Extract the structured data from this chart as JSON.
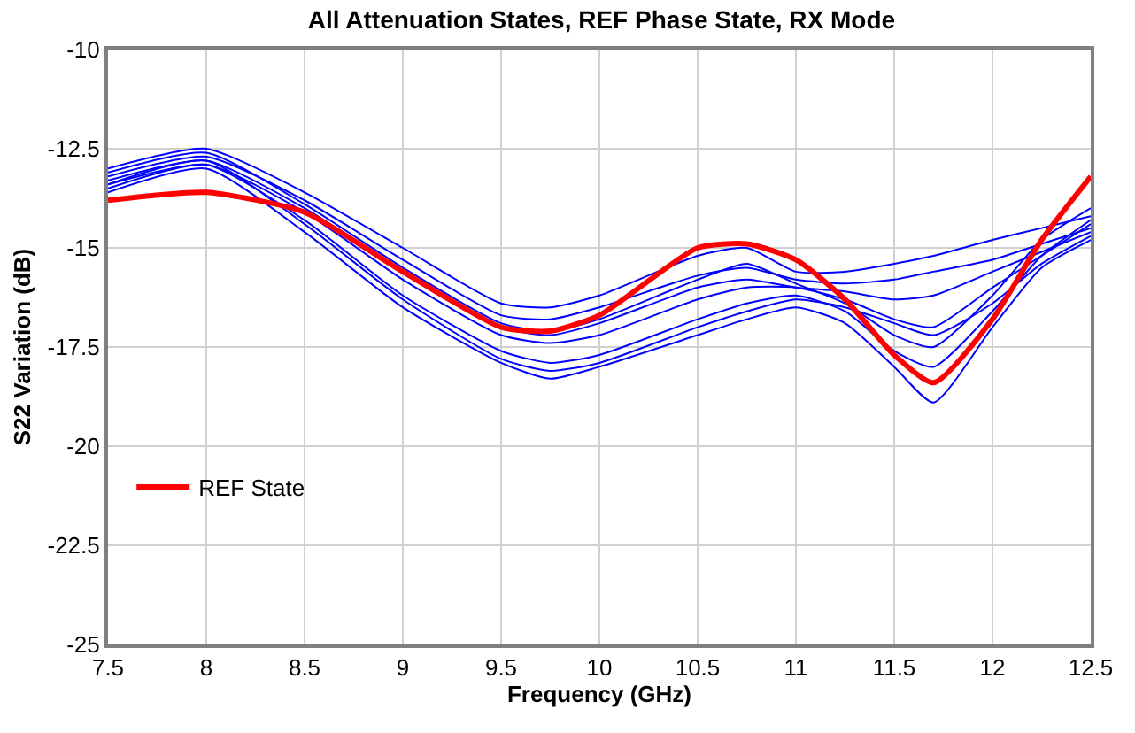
{
  "chart_data": {
    "type": "line",
    "title": "All Attenuation States, REF Phase State, RX Mode",
    "xlabel": "Frequency (GHz)",
    "ylabel": "S22 Variation (dB)",
    "xlim": [
      7.5,
      12.5
    ],
    "xticks": [
      7.5,
      8,
      8.5,
      9,
      9.5,
      10,
      10.5,
      11,
      11.5,
      12,
      12.5
    ],
    "ylim": [
      -25,
      -10
    ],
    "yticks": [
      -25,
      -22.5,
      -20,
      -17.5,
      -15,
      -12.5,
      -10
    ],
    "grid": true,
    "legend": "bottom left",
    "marker": "none",
    "line_style": "solid",
    "x": [
      7.5,
      8,
      8.5,
      9,
      9.5,
      9.75,
      10,
      10.5,
      10.75,
      11,
      11.25,
      11.5,
      11.7,
      12,
      12.25,
      12.5
    ],
    "series": [
      {
        "color": "#0000ff",
        "values": [
          -13.0,
          -12.5,
          -13.6,
          -15.0,
          -16.4,
          -16.5,
          -16.2,
          -15.2,
          -15.0,
          -15.6,
          -15.6,
          -15.4,
          -15.2,
          -14.8,
          -14.5,
          -14.2
        ]
      },
      {
        "color": "#0000ff",
        "values": [
          -13.2,
          -12.7,
          -13.8,
          -15.3,
          -16.7,
          -16.8,
          -16.5,
          -15.7,
          -15.5,
          -15.8,
          -15.9,
          -15.8,
          -15.6,
          -15.3,
          -14.9,
          -14.5
        ]
      },
      {
        "color": "#0000ff",
        "values": [
          -13.3,
          -12.8,
          -14.0,
          -15.6,
          -17.0,
          -17.2,
          -16.9,
          -16.0,
          -15.8,
          -16.0,
          -16.1,
          -16.3,
          -16.2,
          -15.6,
          -15.1,
          -14.6
        ]
      },
      {
        "color": "#0000ff",
        "values": [
          -13.4,
          -12.9,
          -14.1,
          -15.8,
          -17.2,
          -17.4,
          -17.2,
          -16.3,
          -16.0,
          -16.0,
          -16.3,
          -16.8,
          -17.0,
          -16.0,
          -15.2,
          -14.4
        ]
      },
      {
        "color": "#0000ff",
        "values": [
          -13.1,
          -12.6,
          -13.9,
          -15.5,
          -16.9,
          -17.1,
          -16.8,
          -15.8,
          -15.4,
          -15.9,
          -16.4,
          -17.2,
          -17.5,
          -16.2,
          -14.8,
          -14.0
        ]
      },
      {
        "color": "#0000ff",
        "values": [
          -13.5,
          -12.9,
          -14.3,
          -16.2,
          -17.6,
          -17.9,
          -17.7,
          -16.8,
          -16.4,
          -16.2,
          -16.6,
          -17.6,
          -18.0,
          -16.6,
          -15.2,
          -14.3
        ]
      },
      {
        "color": "#0000ff",
        "values": [
          -13.6,
          -13.0,
          -14.6,
          -16.5,
          -17.9,
          -18.3,
          -18.0,
          -17.2,
          -16.8,
          -16.5,
          -16.9,
          -18.0,
          -18.9,
          -17.0,
          -15.5,
          -14.8
        ]
      },
      {
        "color": "#0000ff",
        "values": [
          -13.4,
          -12.8,
          -14.4,
          -16.3,
          -17.8,
          -18.1,
          -17.9,
          -17.0,
          -16.6,
          -16.3,
          -16.5,
          -16.9,
          -17.2,
          -16.4,
          -15.4,
          -14.7
        ]
      },
      {
        "name": "REF State",
        "color": "#ff0000",
        "values": [
          -13.8,
          -13.6,
          -14.1,
          -15.6,
          -17.0,
          -17.1,
          -16.7,
          -15.0,
          -14.9,
          -15.3,
          -16.3,
          -17.7,
          -18.4,
          -16.8,
          -14.8,
          -13.2
        ]
      }
    ]
  }
}
